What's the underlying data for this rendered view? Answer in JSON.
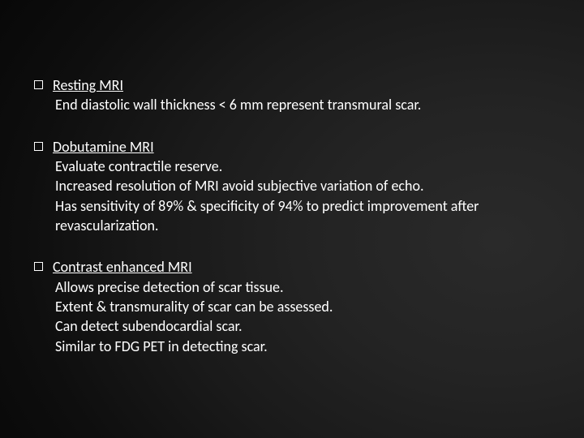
{
  "text_color": "#ffffff",
  "background": {
    "gradient_center": "#2a2a2a",
    "gradient_edge": "#000000"
  },
  "font_size_pt": 18,
  "sections": [
    {
      "heading": "Resting MRI",
      "lines": [
        "End diastolic wall thickness < 6 mm represent transmural scar."
      ]
    },
    {
      "heading": "Dobutamine MRI",
      "lines": [
        "Evaluate contractile reserve.",
        "Increased resolution of MRI avoid subjective variation of echo.",
        "Has sensitivity of 89%  &  specificity of 94% to predict improvement  after revascularization."
      ]
    },
    {
      "heading": "Contrast enhanced MRI",
      "lines": [
        "Allows precise detection of scar tissue.",
        "Extent & transmurality of scar can be assessed.",
        "Can detect subendocardial scar.",
        "Similar to FDG PET in detecting scar."
      ]
    }
  ]
}
